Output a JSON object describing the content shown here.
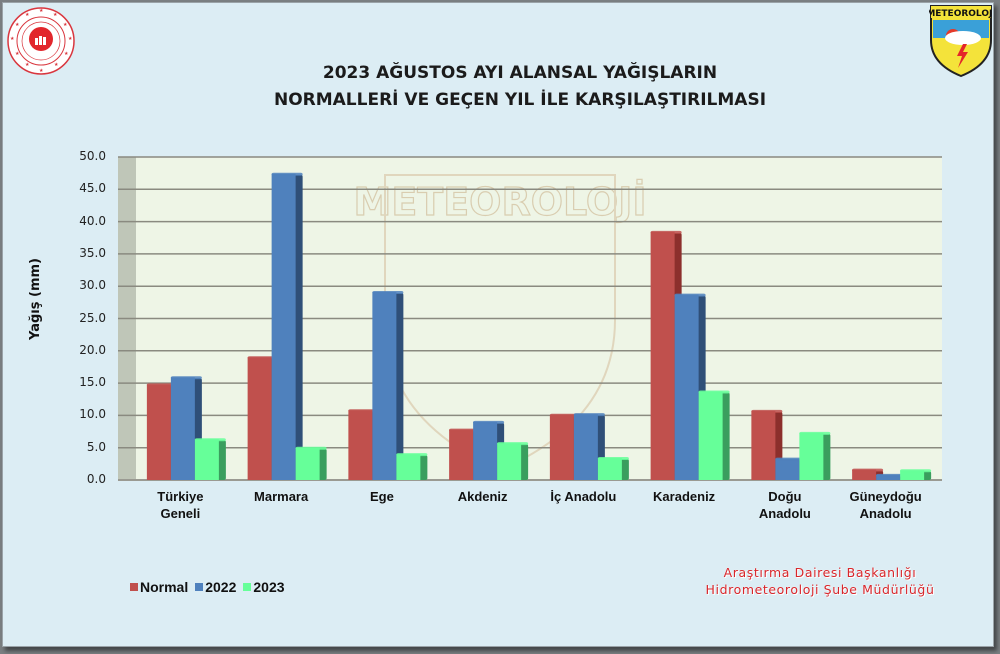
{
  "header": {
    "title_line1": "2023 AĞUSTOS AYI ALANSAL YAĞIŞLARIN",
    "title_line2": "NORMALLERİ VE GEÇEN YIL İLE KARŞILAŞTIRILMASI",
    "logo_left": "ministry-seal-icon",
    "logo_right_text": "METEOROLOJİ"
  },
  "colors": {
    "normal": "#c0504d",
    "normal_side": "#8c2f2c",
    "y2022": "#4f81bd",
    "y2022_side": "#2f4f78",
    "y2023": "#66ff99",
    "y2023_side": "#3a9e5e",
    "plot_bg": "#eef5e6",
    "wall_left": "#bfc6b8",
    "grid": "#8a8a80",
    "page_bg": "#dcedf4",
    "credit": "#d8262b"
  },
  "legend": {
    "items": [
      {
        "label": "Normal",
        "color": "#c0504d"
      },
      {
        "label": "2022",
        "color": "#4f81bd"
      },
      {
        "label": "2023",
        "color": "#66ff99"
      }
    ]
  },
  "credit": {
    "line1": "Araştırma Dairesi Başkanlığı",
    "line2": "Hidrometeoroloji Şube Müdürlüğü"
  },
  "watermark_text": "METEOROLOJİ",
  "chart_data": {
    "type": "bar",
    "title": "2023 AĞUSTOS AYI ALANSAL YAĞIŞLARIN NORMALLERİ VE GEÇEN YIL İLE KARŞILAŞTIRILMASI",
    "xlabel": "",
    "ylabel": "Yağış (mm)",
    "ylim": [
      0,
      50
    ],
    "yticks": [
      "0.0",
      "5.0",
      "10.0",
      "15.0",
      "20.0",
      "25.0",
      "30.0",
      "35.0",
      "40.0",
      "45.0",
      "50.0"
    ],
    "grid": true,
    "legend_position": "bottom-left",
    "categories": [
      "Türkiye Geneli",
      "Marmara",
      "Ege",
      "Akdeniz",
      "İç Anadolu",
      "Karadeniz",
      "Doğu Anadolu",
      "Güneydoğu Anadolu"
    ],
    "category_lines": [
      [
        "Türkiye",
        "Geneli"
      ],
      [
        "Marmara"
      ],
      [
        "Ege"
      ],
      [
        "Akdeniz"
      ],
      [
        "İç Anadolu"
      ],
      [
        "Karadeniz"
      ],
      [
        "Doğu",
        "Anadolu"
      ],
      [
        "Güneydoğu",
        "Anadolu"
      ]
    ],
    "series": [
      {
        "name": "Normal",
        "values": [
          14.8,
          19.0,
          10.8,
          7.8,
          10.1,
          38.4,
          10.7,
          1.6
        ]
      },
      {
        "name": "2022",
        "values": [
          15.9,
          47.4,
          29.1,
          9.0,
          10.2,
          28.7,
          3.3,
          0.8
        ]
      },
      {
        "name": "2023",
        "values": [
          6.3,
          5.0,
          4.0,
          5.7,
          3.4,
          13.7,
          7.3,
          1.5
        ]
      }
    ]
  }
}
